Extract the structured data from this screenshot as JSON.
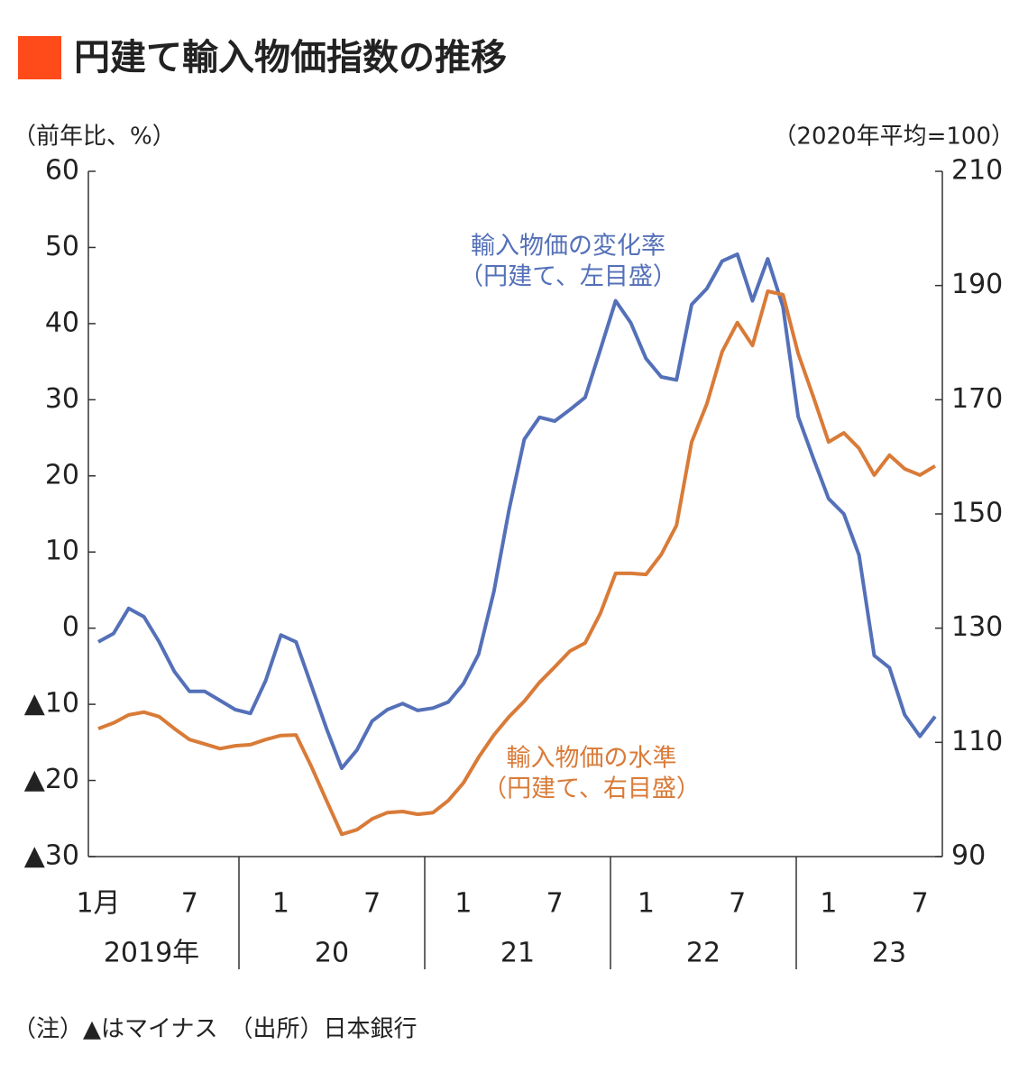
{
  "chart_data": {
    "type": "line",
    "title": "円建て輸入物価指数の推移",
    "y_label": "（前年比、%）",
    "y2_label": "（2020年平均=100）",
    "note": "（注）▲はマイナス　（出所）日本銀行",
    "categories": [
      "1月",
      null,
      null,
      null,
      null,
      null,
      "7",
      null,
      null,
      null,
      null,
      null,
      "1",
      null,
      null,
      null,
      null,
      null,
      "7",
      null,
      null,
      null,
      null,
      null,
      "1",
      null,
      null,
      null,
      null,
      null,
      "7",
      null,
      null,
      null,
      null,
      null,
      "1",
      null,
      null,
      null,
      null,
      null,
      "7",
      null,
      null,
      null,
      null,
      null,
      "1",
      null,
      null,
      null,
      null,
      null,
      "7",
      null
    ],
    "year_labels": [
      "2019年",
      "20",
      "21",
      "22",
      "23"
    ],
    "series": [
      {
        "name": "輸入物価の変化率",
        "sub_label": "（円建て、左目盛）",
        "color": "#5470b8",
        "axis": "y",
        "values": [
          -1.8,
          -0.7,
          2.6,
          1.5,
          -1.8,
          -5.7,
          -8.3,
          -8.3,
          -9.5,
          -10.7,
          -11.2,
          -6.9,
          -0.9,
          -1.8,
          -7.5,
          -13.2,
          -18.4,
          -16.0,
          -12.2,
          -10.7,
          -9.9,
          -10.8,
          -10.5,
          -9.7,
          -7.3,
          -3.4,
          4.8,
          15.6,
          24.8,
          27.7,
          27.2,
          28.7,
          30.3,
          36.6,
          43.0,
          40.1,
          35.4,
          33.0,
          32.6,
          42.5,
          44.6,
          48.2,
          49.1,
          43.0,
          48.5,
          42.2,
          27.8,
          22.3,
          17.0,
          15.0,
          9.6,
          -3.6,
          -5.2,
          -11.4,
          -14.2,
          -11.6
        ]
      },
      {
        "name": "輸入物価の水準",
        "sub_label": "（円建て、右目盛）",
        "color": "#d97b38",
        "axis": "y2",
        "values": [
          112.4,
          113.4,
          114.8,
          115.3,
          114.5,
          112.4,
          110.5,
          109.7,
          108.9,
          109.4,
          109.6,
          110.5,
          111.2,
          111.3,
          105.8,
          99.8,
          93.9,
          94.7,
          96.6,
          97.7,
          97.9,
          97.4,
          97.7,
          99.8,
          102.9,
          107.4,
          111.3,
          114.5,
          117.2,
          120.5,
          123.2,
          126.0,
          127.4,
          132.6,
          139.6,
          139.6,
          139.4,
          142.9,
          148.0,
          162.6,
          169.3,
          178.4,
          183.5,
          179.5,
          189.0,
          188.4,
          178.1,
          170.5,
          162.6,
          164.2,
          161.5,
          156.8,
          160.3,
          157.9,
          156.8,
          158.4
        ]
      }
    ],
    "ylim": [
      -30,
      60
    ],
    "yticks": [
      {
        "value": -30,
        "label": "▲30"
      },
      {
        "value": -20,
        "label": "▲20"
      },
      {
        "value": -10,
        "label": "▲10"
      },
      0,
      10,
      20,
      30,
      40,
      50,
      60
    ],
    "y2lim": [
      90,
      210
    ],
    "y2ticks": [
      90,
      110,
      130,
      150,
      170,
      190,
      210
    ]
  }
}
